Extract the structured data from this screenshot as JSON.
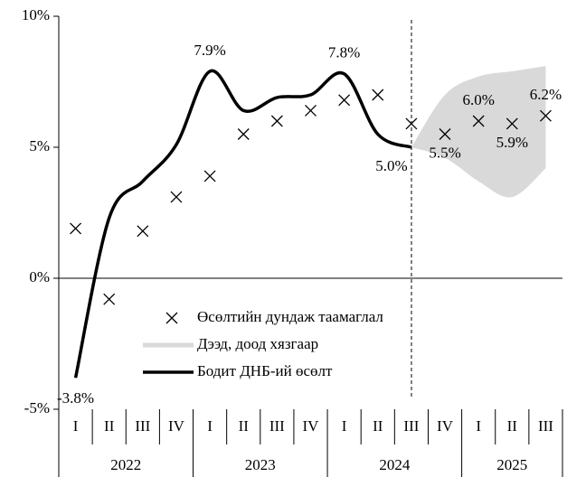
{
  "chart_data": {
    "type": "line",
    "categories": [
      "I",
      "II",
      "III",
      "IV",
      "I",
      "II",
      "III",
      "IV",
      "I",
      "II",
      "III",
      "IV",
      "I",
      "II",
      "III"
    ],
    "groups": [
      {
        "label": "2022",
        "count": 4
      },
      {
        "label": "2023",
        "count": 4
      },
      {
        "label": "2024",
        "count": 4
      },
      {
        "label": "2025",
        "count": 3
      }
    ],
    "ylim": [
      -5,
      10
    ],
    "yticks": [
      {
        "value": -5,
        "label": "-5%"
      },
      {
        "value": 0,
        "label": "0%"
      },
      {
        "value": 5,
        "label": "5%"
      },
      {
        "value": 10,
        "label": "10%"
      }
    ],
    "band": {
      "name": "Дээд, доод хязгаар",
      "color": "#d9d9d9",
      "upper": [
        null,
        null,
        null,
        null,
        null,
        null,
        null,
        null,
        null,
        null,
        5.0,
        7.0,
        7.7,
        7.9,
        8.1
      ],
      "lower": [
        null,
        null,
        null,
        null,
        null,
        null,
        null,
        null,
        null,
        null,
        5.0,
        4.6,
        3.7,
        3.1,
        4.2
      ]
    },
    "series": [
      {
        "name": "Өсөлтийн дундаж таамаглал",
        "color": "#000000",
        "marker": "x",
        "values": [
          1.9,
          -0.8,
          1.8,
          3.1,
          3.9,
          5.5,
          6.0,
          6.4,
          6.8,
          7.0,
          5.9,
          5.5,
          6.0,
          5.9,
          6.2
        ],
        "value_labels": [
          null,
          null,
          null,
          null,
          null,
          null,
          null,
          null,
          null,
          null,
          null,
          "5.5%",
          "6.0%",
          "5.9%",
          "6.2%"
        ]
      },
      {
        "name": "Бодит ДНБ-ий өсөлт",
        "color": "#000000",
        "marker": "line",
        "values": [
          -3.8,
          2.3,
          3.7,
          5.1,
          7.9,
          6.4,
          6.9,
          7.0,
          7.8,
          5.5,
          5.0,
          null,
          null,
          null,
          null
        ],
        "value_labels": [
          "-3.8%",
          null,
          null,
          null,
          "7.9%",
          null,
          null,
          null,
          "7.8%",
          null,
          "5.0%",
          null,
          null,
          null,
          null
        ]
      }
    ]
  }
}
